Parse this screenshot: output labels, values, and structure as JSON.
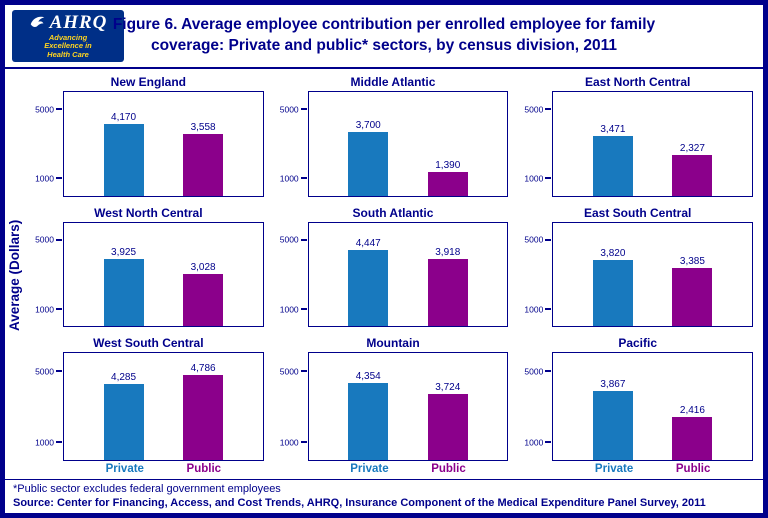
{
  "header": {
    "logo": {
      "brand": "AHRQ",
      "tagline": "Advancing Excellence in Health Care"
    },
    "title_line1": "Figure 6. Average employee contribution per enrolled employee for family",
    "title_line2": "coverage: Private and public* sectors, by census division, 2011"
  },
  "y_axis_label": "Average (Dollars)",
  "axis_ticks": [
    "5000",
    "1000"
  ],
  "series_labels": {
    "private": "Private",
    "public": "Public"
  },
  "colors": {
    "private_bar": "#1879BE",
    "public_bar": "#8B008B",
    "navy": "#00008B",
    "logo_background": "#002F87",
    "logo_tagline": "#FFD520"
  },
  "chart_data": {
    "type": "bar",
    "title": "Figure 6. Average employee contribution per enrolled employee for family coverage: Private and public* sectors, by census division, 2011",
    "categories": [
      "Private",
      "Public"
    ],
    "ylabel": "Average (Dollars)",
    "ylim": [
      0,
      6000
    ],
    "yticks": [
      1000,
      5000
    ],
    "legend_position": "bottom-axis-labels",
    "grid": false,
    "panels": [
      {
        "title": "New England",
        "values": [
          4170,
          3558
        ],
        "labels": [
          "4,170",
          "3,558"
        ]
      },
      {
        "title": "Middle Atlantic",
        "values": [
          3700,
          1390
        ],
        "labels": [
          "3,700",
          "1,390"
        ]
      },
      {
        "title": "East North Central",
        "values": [
          3471,
          2327
        ],
        "labels": [
          "3,471",
          "2,327"
        ]
      },
      {
        "title": "West North Central",
        "values": [
          3925,
          3028
        ],
        "labels": [
          "3,925",
          "3,028"
        ]
      },
      {
        "title": "South Atlantic",
        "values": [
          4447,
          3918
        ],
        "labels": [
          "4,447",
          "3,918"
        ]
      },
      {
        "title": "East South Central",
        "values": [
          3820,
          3385
        ],
        "labels": [
          "3,820",
          "3,385"
        ]
      },
      {
        "title": "West South Central",
        "values": [
          4285,
          4786
        ],
        "labels": [
          "4,285",
          "4,786"
        ]
      },
      {
        "title": "Mountain",
        "values": [
          4354,
          3724
        ],
        "labels": [
          "4,354",
          "3,724"
        ]
      },
      {
        "title": "Pacific",
        "values": [
          3867,
          2416
        ],
        "labels": [
          "3,867",
          "2,416"
        ]
      }
    ]
  },
  "footnotes": {
    "note": "*Public sector excludes federal government employees",
    "source": "Source: Center for Financing, Access, and Cost Trends, AHRQ, Insurance Component of the Medical Expenditure Panel Survey, 2011"
  }
}
